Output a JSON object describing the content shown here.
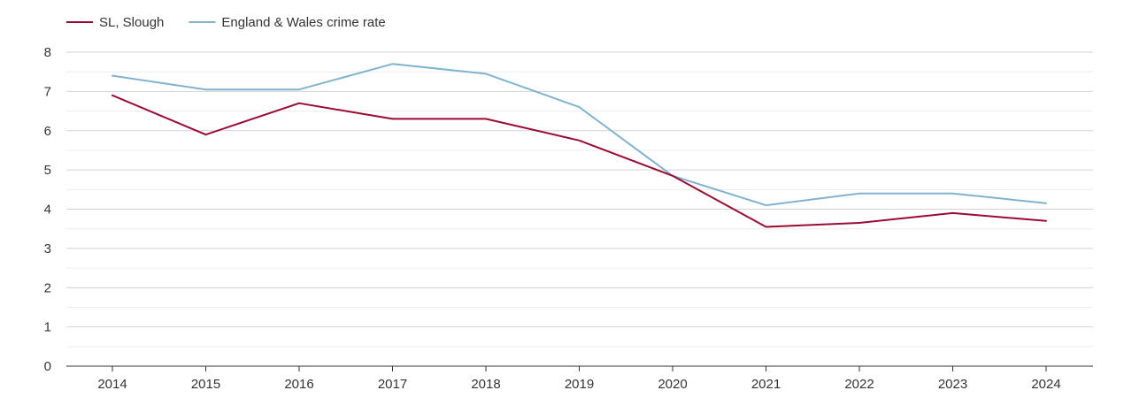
{
  "chart_data": {
    "type": "line",
    "title": "",
    "xlabel": "",
    "ylabel": "",
    "x": [
      "2014",
      "2015",
      "2016",
      "2017",
      "2018",
      "2019",
      "2020",
      "2021",
      "2022",
      "2023",
      "2024"
    ],
    "ylim": [
      0,
      8
    ],
    "yticks": [
      "0",
      "1",
      "2",
      "3",
      "4",
      "5",
      "6",
      "7",
      "8"
    ],
    "grid": true,
    "legend_position": "top-left",
    "series": [
      {
        "name": "SL, Slough",
        "color": "#9b0a30",
        "values": [
          6.9,
          5.9,
          6.7,
          6.3,
          6.3,
          5.75,
          4.85,
          3.55,
          3.65,
          3.9,
          3.7
        ]
      },
      {
        "name": "England & Wales crime rate",
        "color": "#7fb3d0",
        "values": [
          7.4,
          7.05,
          7.05,
          7.7,
          7.45,
          6.6,
          4.85,
          4.1,
          4.4,
          4.4,
          4.15
        ]
      }
    ]
  }
}
